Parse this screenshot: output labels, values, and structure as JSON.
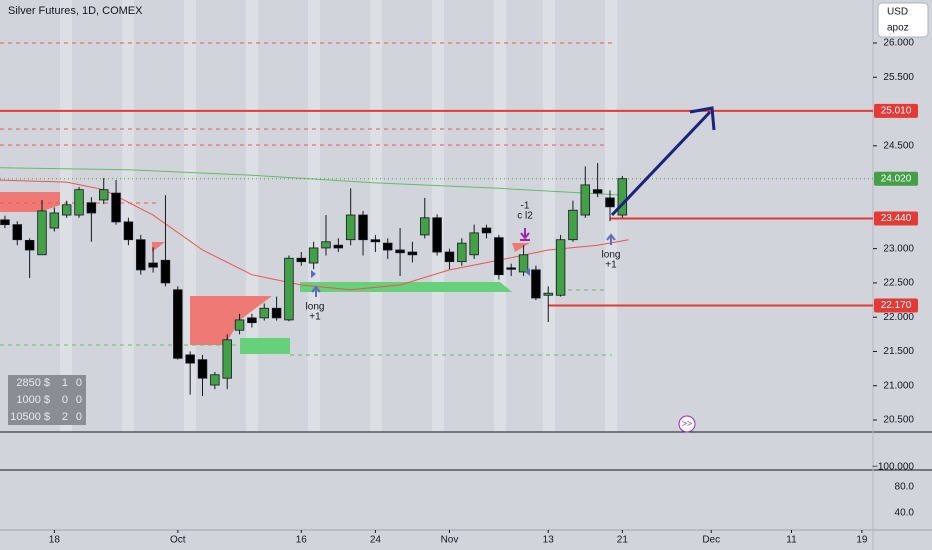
{
  "chart_data": {
    "type": "candlestick",
    "title": "Silver Futures, 1D, COMEX",
    "currency": "USD",
    "user": "apoz",
    "xlim": [
      -0.4,
      70.3
    ],
    "ylim": [
      20.325,
      26.627
    ],
    "xticks": [
      {
        "value": 4,
        "label": "18"
      },
      {
        "value": 14,
        "label": "Oct"
      },
      {
        "value": 24,
        "label": "16"
      },
      {
        "value": 30,
        "label": "24"
      },
      {
        "value": 36,
        "label": "Nov"
      },
      {
        "value": 44,
        "label": "13"
      },
      {
        "value": 50,
        "label": "21"
      },
      {
        "value": 57.2,
        "label": "Dec"
      },
      {
        "value": 63.7,
        "label": "11"
      },
      {
        "value": 69.4,
        "label": "19"
      }
    ],
    "yticks": [
      {
        "value": 20.5,
        "label": "20.500"
      },
      {
        "value": 21,
        "label": "21.000"
      },
      {
        "value": 21.5,
        "label": "21.500"
      },
      {
        "value": 22,
        "label": "22.000"
      },
      {
        "value": 22.5,
        "label": "22.500"
      },
      {
        "value": 23,
        "label": "23.000"
      },
      {
        "value": 24.5,
        "label": "24.500"
      },
      {
        "value": 25.5,
        "label": "25.500"
      },
      {
        "value": 26,
        "label": "26.000"
      }
    ],
    "up_color": "#43a047",
    "down_color": "#000000",
    "open": [
      23.42,
      23.35,
      23.12,
      22.91,
      23.3,
      23.49,
      23.49,
      23.67,
      23.71,
      23.81,
      23.39,
      23.13,
      22.79,
      22.83,
      22.4,
      21.45,
      21.38,
      21.01,
      21.11,
      21.81,
      21.99,
      21.99,
      22.13,
      21.96,
      22.86,
      22.79,
      23.01,
      23.05,
      23.13,
      23.49,
      23.13,
      23.08,
      22.98,
      22.95,
      23.2,
      23.45,
      22.95,
      22.81,
      22.91,
      23.3,
      23.16,
      22.72,
      22.66,
      22.69,
      22.32,
      22.32,
      23.13,
      23.49,
      23.86,
      23.74,
      23.49
    ],
    "close": [
      23.35,
      23.13,
      22.98,
      23.55,
      23.52,
      23.64,
      23.86,
      23.52,
      23.86,
      23.39,
      23.13,
      22.69,
      22.73,
      22.5,
      21.4,
      21.33,
      21.11,
      21.16,
      21.67,
      21.96,
      21.92,
      22.13,
      21.99,
      22.86,
      22.81,
      23.01,
      23.1,
      23.01,
      23.49,
      23.13,
      23.1,
      22.98,
      22.94,
      22.91,
      23.45,
      22.95,
      22.81,
      23.08,
      23.23,
      23.23,
      22.62,
      22.7,
      22.91,
      22.28,
      22.35,
      23.13,
      23.56,
      23.93,
      23.81,
      23.61,
      24.02
    ],
    "high": [
      23.48,
      23.4,
      23.15,
      23.71,
      23.6,
      23.7,
      23.9,
      23.75,
      24.03,
      24.0,
      23.45,
      23.2,
      23.02,
      23.78,
      22.45,
      21.5,
      21.45,
      21.2,
      21.75,
      22.05,
      22.05,
      22.2,
      22.3,
      22.9,
      22.95,
      23.1,
      23.49,
      23.15,
      23.88,
      23.55,
      23.2,
      23.15,
      23.3,
      23.1,
      23.74,
      23.5,
      23.0,
      23.15,
      23.35,
      23.35,
      23.2,
      22.78,
      23.05,
      22.75,
      22.45,
      23.2,
      23.7,
      24.2,
      24.25,
      23.85,
      24.06
    ],
    "low": [
      23.3,
      23.05,
      22.57,
      22.91,
      23.25,
      23.45,
      23.45,
      23.1,
      23.65,
      23.35,
      23.05,
      22.62,
      22.65,
      22.45,
      21.38,
      20.87,
      20.85,
      20.95,
      20.95,
      21.75,
      21.85,
      21.95,
      21.95,
      21.94,
      22.75,
      22.7,
      22.9,
      22.95,
      23.05,
      22.9,
      22.95,
      22.85,
      22.6,
      22.8,
      23.15,
      22.9,
      22.7,
      22.75,
      22.85,
      23.15,
      22.55,
      22.6,
      22.6,
      22.25,
      21.93,
      22.3,
      23.1,
      23.45,
      23.75,
      23.4,
      23.45
    ],
    "levels": [
      {
        "value": 25.01,
        "label": "25.010",
        "color": "#e53935"
      },
      {
        "value": 24.02,
        "label": "24.020",
        "color": "#43a047"
      },
      {
        "value": 23.44,
        "label": "23.440",
        "color": "#e53935"
      },
      {
        "value": 22.17,
        "label": "22.170",
        "color": "#e53935"
      }
    ],
    "ma_slow": {
      "color": "#66bb6a",
      "x": [
        -0.4,
        10,
        20,
        30,
        40,
        50
      ],
      "values": [
        24.18,
        24.15,
        24.07,
        23.96,
        23.88,
        23.78
      ]
    },
    "ma_fast": {
      "color": "#ef5350",
      "x": [
        -0.4,
        5,
        8,
        12,
        16,
        20,
        24,
        28,
        32,
        36,
        40,
        44,
        48,
        50.5
      ],
      "values": [
        24.0,
        23.97,
        23.86,
        23.49,
        22.98,
        22.62,
        22.47,
        22.4,
        22.47,
        22.69,
        22.83,
        22.98,
        23.05,
        23.13
      ]
    },
    "annotations": [
      {
        "lines": [
          "long",
          "+1"
        ]
      },
      {
        "lines": [
          "-1",
          "c l2"
        ]
      },
      {
        "lines": [
          "long",
          "+1"
        ]
      }
    ],
    "stats": [
      [
        "2850 $",
        "1",
        "0"
      ],
      [
        "1000 $",
        "0",
        "0"
      ],
      [
        "10500 $",
        "2",
        "0"
      ]
    ],
    "lower_pane_ticks": [
      "−100.000",
      "80.0",
      "40.0"
    ]
  }
}
